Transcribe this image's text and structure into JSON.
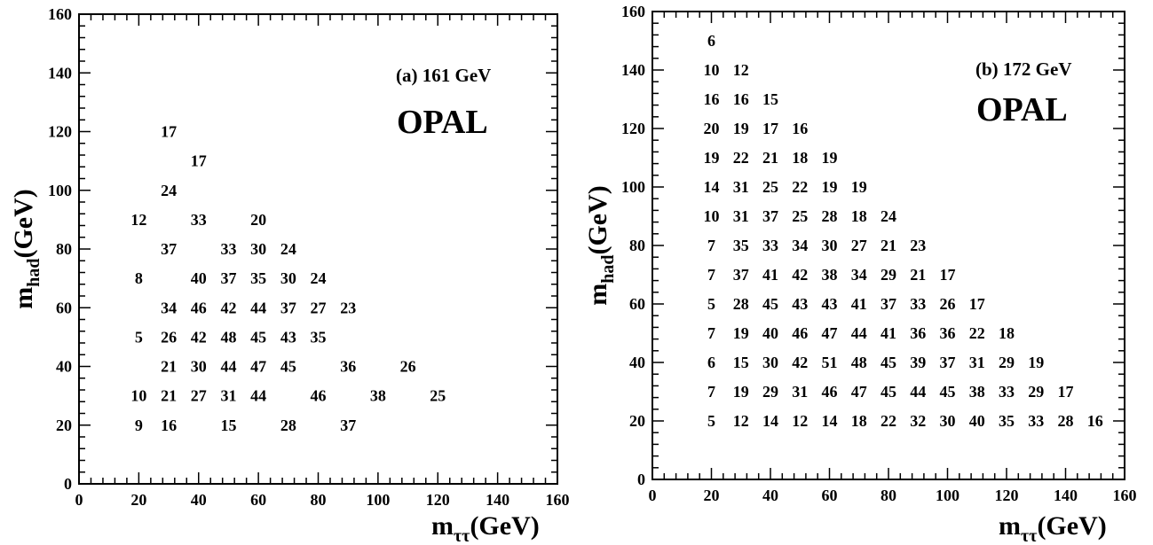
{
  "chart_data": [
    {
      "type": "table",
      "panel_label": "(a) 161 GeV",
      "experiment": "OPAL",
      "xlabel": {
        "main": "m",
        "sub": "ττ",
        "unit": "(GeV)"
      },
      "ylabel": {
        "main": "m",
        "sub": "had",
        "unit": "(GeV)"
      },
      "xlim": [
        0,
        160
      ],
      "ylim": [
        0,
        160
      ],
      "x_ticks": [
        "0",
        "20",
        "40",
        "60",
        "80",
        "100",
        "120",
        "140",
        "160"
      ],
      "y_ticks": [
        "0",
        "20",
        "40",
        "60",
        "80",
        "100",
        "120",
        "140",
        "160"
      ],
      "cells": [
        {
          "x": 30,
          "y": 120,
          "value": "17"
        },
        {
          "x": 40,
          "y": 110,
          "value": "17"
        },
        {
          "x": 30,
          "y": 100,
          "value": "24"
        },
        {
          "x": 20,
          "y": 90,
          "value": "12"
        },
        {
          "x": 40,
          "y": 90,
          "value": "33"
        },
        {
          "x": 60,
          "y": 90,
          "value": "20"
        },
        {
          "x": 30,
          "y": 80,
          "value": "37"
        },
        {
          "x": 50,
          "y": 80,
          "value": "33"
        },
        {
          "x": 60,
          "y": 80,
          "value": "30"
        },
        {
          "x": 70,
          "y": 80,
          "value": "24"
        },
        {
          "x": 20,
          "y": 70,
          "value": "8"
        },
        {
          "x": 40,
          "y": 70,
          "value": "40"
        },
        {
          "x": 50,
          "y": 70,
          "value": "37"
        },
        {
          "x": 60,
          "y": 70,
          "value": "35"
        },
        {
          "x": 70,
          "y": 70,
          "value": "30"
        },
        {
          "x": 80,
          "y": 70,
          "value": "24"
        },
        {
          "x": 30,
          "y": 60,
          "value": "34"
        },
        {
          "x": 40,
          "y": 60,
          "value": "46"
        },
        {
          "x": 50,
          "y": 60,
          "value": "42"
        },
        {
          "x": 60,
          "y": 60,
          "value": "44"
        },
        {
          "x": 70,
          "y": 60,
          "value": "37"
        },
        {
          "x": 80,
          "y": 60,
          "value": "27"
        },
        {
          "x": 90,
          "y": 60,
          "value": "23"
        },
        {
          "x": 20,
          "y": 50,
          "value": "5"
        },
        {
          "x": 30,
          "y": 50,
          "value": "26"
        },
        {
          "x": 40,
          "y": 50,
          "value": "42"
        },
        {
          "x": 50,
          "y": 50,
          "value": "48"
        },
        {
          "x": 60,
          "y": 50,
          "value": "45"
        },
        {
          "x": 70,
          "y": 50,
          "value": "43"
        },
        {
          "x": 80,
          "y": 50,
          "value": "35"
        },
        {
          "x": 30,
          "y": 40,
          "value": "21"
        },
        {
          "x": 40,
          "y": 40,
          "value": "30"
        },
        {
          "x": 50,
          "y": 40,
          "value": "44"
        },
        {
          "x": 60,
          "y": 40,
          "value": "47"
        },
        {
          "x": 70,
          "y": 40,
          "value": "45"
        },
        {
          "x": 90,
          "y": 40,
          "value": "36"
        },
        {
          "x": 110,
          "y": 40,
          "value": "26"
        },
        {
          "x": 20,
          "y": 30,
          "value": "10"
        },
        {
          "x": 30,
          "y": 30,
          "value": "21"
        },
        {
          "x": 40,
          "y": 30,
          "value": "27"
        },
        {
          "x": 50,
          "y": 30,
          "value": "31"
        },
        {
          "x": 60,
          "y": 30,
          "value": "44"
        },
        {
          "x": 80,
          "y": 30,
          "value": "46"
        },
        {
          "x": 100,
          "y": 30,
          "value": "38"
        },
        {
          "x": 120,
          "y": 30,
          "value": "25"
        },
        {
          "x": 20,
          "y": 20,
          "value": "9"
        },
        {
          "x": 30,
          "y": 20,
          "value": "16"
        },
        {
          "x": 50,
          "y": 20,
          "value": "15"
        },
        {
          "x": 70,
          "y": 20,
          "value": "28"
        },
        {
          "x": 90,
          "y": 20,
          "value": "37"
        }
      ]
    },
    {
      "type": "table",
      "panel_label": "(b) 172 GeV",
      "experiment": "OPAL",
      "xlabel": {
        "main": "m",
        "sub": "ττ",
        "unit": "(GeV)"
      },
      "ylabel": {
        "main": "m",
        "sub": "had",
        "unit": "(GeV)"
      },
      "xlim": [
        0,
        160
      ],
      "ylim": [
        0,
        160
      ],
      "x_ticks": [
        "0",
        "20",
        "40",
        "60",
        "80",
        "100",
        "120",
        "140",
        "160"
      ],
      "y_ticks": [
        "0",
        "20",
        "40",
        "60",
        "80",
        "100",
        "120",
        "140",
        "160"
      ],
      "rows": [
        {
          "y": 150,
          "values": [
            "6"
          ]
        },
        {
          "y": 140,
          "values": [
            "10",
            "12"
          ]
        },
        {
          "y": 130,
          "values": [
            "16",
            "16",
            "15"
          ]
        },
        {
          "y": 120,
          "values": [
            "20",
            "19",
            "17",
            "16"
          ]
        },
        {
          "y": 110,
          "values": [
            "19",
            "22",
            "21",
            "18",
            "19"
          ]
        },
        {
          "y": 100,
          "values": [
            "14",
            "31",
            "25",
            "22",
            "19",
            "19"
          ]
        },
        {
          "y": 90,
          "values": [
            "10",
            "31",
            "37",
            "25",
            "28",
            "18",
            "24"
          ]
        },
        {
          "y": 80,
          "values": [
            "7",
            "35",
            "33",
            "34",
            "30",
            "27",
            "21",
            "23"
          ]
        },
        {
          "y": 70,
          "values": [
            "7",
            "37",
            "41",
            "42",
            "38",
            "34",
            "29",
            "21",
            "17"
          ]
        },
        {
          "y": 60,
          "values": [
            "5",
            "28",
            "45",
            "43",
            "43",
            "41",
            "37",
            "33",
            "26",
            "17"
          ]
        },
        {
          "y": 50,
          "values": [
            "7",
            "19",
            "40",
            "46",
            "47",
            "44",
            "41",
            "36",
            "36",
            "22",
            "18"
          ]
        },
        {
          "y": 40,
          "values": [
            "6",
            "15",
            "30",
            "42",
            "51",
            "48",
            "45",
            "39",
            "37",
            "31",
            "29",
            "19"
          ]
        },
        {
          "y": 30,
          "values": [
            "7",
            "19",
            "29",
            "31",
            "46",
            "47",
            "45",
            "44",
            "45",
            "38",
            "33",
            "29",
            "17"
          ]
        },
        {
          "y": 20,
          "values": [
            "5",
            "12",
            "14",
            "12",
            "14",
            "18",
            "22",
            "32",
            "30",
            "40",
            "35",
            "33",
            "28",
            "16"
          ]
        }
      ]
    }
  ]
}
